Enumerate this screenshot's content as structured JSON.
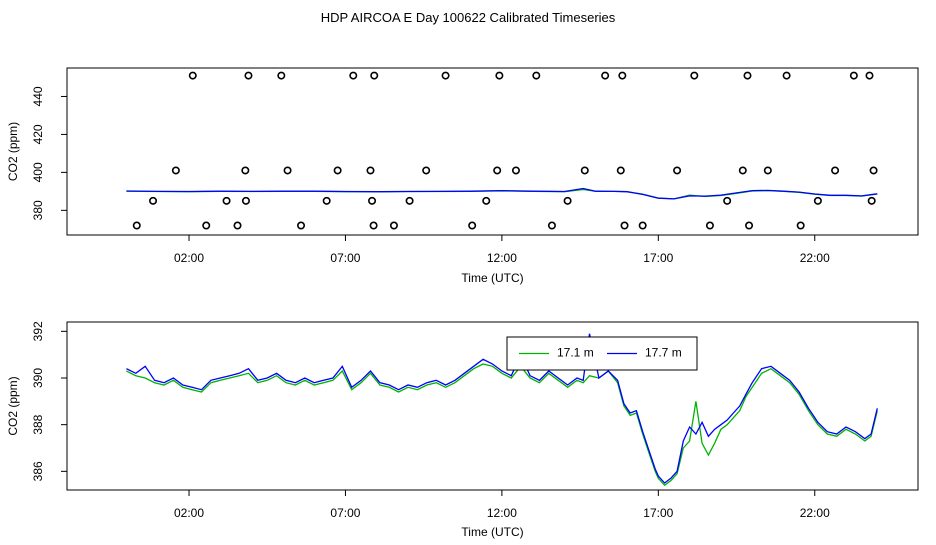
{
  "page_title": "HDP AIRCOA E  Day 100622  Calibrated Timeseries",
  "chart_data": [
    {
      "type": "scatter",
      "panel": "top",
      "xlabel": "Time (UTC)",
      "ylabel": "CO2 (ppm)",
      "xlim": [
        -1.9,
        25.3
      ],
      "ylim": [
        367,
        455
      ],
      "x_ticks": [
        "02:00",
        "07:00",
        "12:00",
        "17:00",
        "22:00"
      ],
      "x_tick_values": [
        2,
        7,
        12,
        17,
        22
      ],
      "y_ticks": [
        "380",
        "400",
        "420",
        "440"
      ],
      "y_tick_values": [
        380,
        400,
        420,
        440
      ],
      "grid": false,
      "series": [
        {
          "kind": "points",
          "color": "#000000",
          "x": [
            0.33,
            0.85,
            1.58,
            2.12,
            2.55,
            3.2,
            3.55,
            3.8,
            3.82,
            3.9,
            4.95,
            5.15,
            5.58,
            6.4,
            6.75,
            7.25,
            7.8,
            7.85,
            7.9,
            7.92,
            8.55,
            9.05,
            9.58,
            10.2,
            11.05,
            11.5,
            11.85,
            11.92,
            12.45,
            13.1,
            13.6,
            14.1,
            14.65,
            15.3,
            15.8,
            15.85,
            15.92,
            16.5,
            17.6,
            18.15,
            18.65,
            19.2,
            19.7,
            19.85,
            19.9,
            20.5,
            21.1,
            21.55,
            22.1,
            22.65,
            23.25,
            23.75,
            23.82,
            23.88
          ],
          "y": [
            372,
            385,
            401,
            451,
            372,
            385,
            372,
            401,
            385,
            451,
            451,
            401,
            372,
            385,
            401,
            451,
            401,
            385,
            372,
            451,
            372,
            385,
            401,
            451,
            372,
            385,
            401,
            451,
            401,
            451,
            372,
            385,
            401,
            451,
            401,
            451,
            372,
            372,
            401,
            451,
            372,
            385,
            401,
            451,
            372,
            401,
            451,
            372,
            385,
            401,
            451,
            451,
            385,
            401
          ]
        },
        {
          "kind": "line",
          "name": "17.1 m",
          "color": "#00b400",
          "x": [
            0.0,
            1.0,
            2.0,
            3.0,
            4.0,
            5.0,
            6.0,
            7.0,
            8.0,
            9.0,
            10.0,
            11.0,
            12.0,
            13.0,
            14.0,
            14.6,
            15.0,
            15.6,
            16.0,
            16.5,
            17.0,
            17.5,
            18.0,
            18.5,
            19.0,
            19.5,
            20.0,
            20.5,
            21.0,
            21.5,
            22.0,
            22.5,
            23.0,
            23.5,
            24.0
          ],
          "y": [
            390.1,
            389.9,
            389.8,
            390.0,
            389.9,
            390.0,
            390.0,
            389.8,
            389.8,
            389.9,
            389.9,
            390.0,
            390.3,
            390.0,
            389.8,
            391.0,
            390.0,
            390.0,
            389.8,
            388.5,
            386.5,
            386.0,
            388.0,
            387.3,
            387.8,
            389.0,
            390.2,
            390.4,
            390.0,
            389.5,
            388.5,
            387.8,
            387.8,
            387.5,
            388.6
          ]
        },
        {
          "kind": "line",
          "name": "17.7 m",
          "color": "#0000ff",
          "x": [
            0.0,
            1.0,
            2.0,
            3.0,
            4.0,
            5.0,
            6.0,
            7.0,
            8.0,
            9.0,
            10.0,
            11.0,
            12.0,
            13.0,
            14.0,
            14.6,
            15.0,
            15.6,
            16.0,
            16.5,
            17.0,
            17.5,
            18.0,
            18.5,
            19.0,
            19.5,
            20.0,
            20.5,
            21.0,
            21.5,
            22.0,
            22.5,
            23.0,
            23.5,
            24.0
          ],
          "y": [
            390.2,
            390.0,
            389.9,
            390.1,
            390.0,
            390.1,
            390.1,
            389.9,
            389.8,
            389.9,
            390.0,
            390.1,
            390.4,
            390.1,
            389.9,
            391.5,
            390.1,
            390.0,
            389.8,
            388.4,
            386.4,
            386.0,
            387.6,
            387.5,
            388.0,
            389.2,
            390.4,
            390.5,
            390.1,
            389.6,
            388.6,
            387.9,
            387.9,
            387.6,
            388.7
          ]
        }
      ]
    },
    {
      "type": "line",
      "panel": "bottom",
      "xlabel": "Time (UTC)",
      "ylabel": "CO2 (ppm)",
      "xlim": [
        -1.9,
        25.3
      ],
      "ylim": [
        385.2,
        392.4
      ],
      "x_ticks": [
        "02:00",
        "07:00",
        "12:00",
        "17:00",
        "22:00"
      ],
      "x_tick_values": [
        2,
        7,
        12,
        17,
        22
      ],
      "y_ticks": [
        "386",
        "388",
        "390",
        "392"
      ],
      "y_tick_values": [
        386,
        388,
        390,
        392
      ],
      "grid": false,
      "legend": "top-center",
      "series": [
        {
          "name": "17.1 m",
          "color": "#00b400",
          "x": [
            0.0,
            0.3,
            0.6,
            0.9,
            1.2,
            1.5,
            1.8,
            2.1,
            2.4,
            2.7,
            3.0,
            3.3,
            3.6,
            3.9,
            4.2,
            4.5,
            4.8,
            5.1,
            5.4,
            5.7,
            6.0,
            6.3,
            6.6,
            6.9,
            7.2,
            7.5,
            7.8,
            8.1,
            8.4,
            8.7,
            9.0,
            9.3,
            9.6,
            9.9,
            10.2,
            10.5,
            10.8,
            11.1,
            11.4,
            11.7,
            12.0,
            12.3,
            12.6,
            12.9,
            13.2,
            13.5,
            13.8,
            14.1,
            14.4,
            14.6,
            14.8,
            15.1,
            15.4,
            15.7,
            15.9,
            16.1,
            16.3,
            16.5,
            16.7,
            16.9,
            17.0,
            17.2,
            17.4,
            17.6,
            17.8,
            18.0,
            18.2,
            18.4,
            18.6,
            18.8,
            19.0,
            19.2,
            19.4,
            19.6,
            19.8,
            20.0,
            20.3,
            20.6,
            20.9,
            21.2,
            21.5,
            21.8,
            22.1,
            22.4,
            22.7,
            23.0,
            23.3,
            23.6,
            23.8,
            24.0
          ],
          "y": [
            390.3,
            390.1,
            390.0,
            389.8,
            389.7,
            389.9,
            389.6,
            389.5,
            389.4,
            389.8,
            389.9,
            390.0,
            390.1,
            390.2,
            389.8,
            389.9,
            390.1,
            389.8,
            389.7,
            389.9,
            389.7,
            389.8,
            389.9,
            390.3,
            389.5,
            389.8,
            390.2,
            389.7,
            389.6,
            389.4,
            389.6,
            389.5,
            389.7,
            389.8,
            389.6,
            389.8,
            390.1,
            390.4,
            390.6,
            390.5,
            390.2,
            390.0,
            390.5,
            390.0,
            389.8,
            390.2,
            389.9,
            389.6,
            389.9,
            389.8,
            390.1,
            390.0,
            390.3,
            389.8,
            388.8,
            388.4,
            388.5,
            387.6,
            386.8,
            386.0,
            385.7,
            385.4,
            385.6,
            385.9,
            387.0,
            387.3,
            389.0,
            387.2,
            386.7,
            387.2,
            387.8,
            388.0,
            388.3,
            388.6,
            389.2,
            389.6,
            390.2,
            390.4,
            390.1,
            389.8,
            389.3,
            388.6,
            388.0,
            387.6,
            387.5,
            387.8,
            387.6,
            387.3,
            387.5,
            388.6
          ]
        },
        {
          "name": "17.7 m",
          "color": "#0000ff",
          "x": [
            0.0,
            0.3,
            0.6,
            0.9,
            1.2,
            1.5,
            1.8,
            2.1,
            2.4,
            2.7,
            3.0,
            3.3,
            3.6,
            3.9,
            4.2,
            4.5,
            4.8,
            5.1,
            5.4,
            5.7,
            6.0,
            6.3,
            6.6,
            6.9,
            7.2,
            7.5,
            7.8,
            8.1,
            8.4,
            8.7,
            9.0,
            9.3,
            9.6,
            9.9,
            10.2,
            10.5,
            10.8,
            11.1,
            11.4,
            11.7,
            12.0,
            12.3,
            12.6,
            12.9,
            13.2,
            13.5,
            13.8,
            14.1,
            14.4,
            14.6,
            14.8,
            15.1,
            15.4,
            15.7,
            15.9,
            16.1,
            16.3,
            16.5,
            16.7,
            16.9,
            17.0,
            17.2,
            17.4,
            17.6,
            17.8,
            18.0,
            18.2,
            18.4,
            18.6,
            18.8,
            19.0,
            19.2,
            19.4,
            19.6,
            19.8,
            20.0,
            20.3,
            20.6,
            20.9,
            21.2,
            21.5,
            21.8,
            22.1,
            22.4,
            22.7,
            23.0,
            23.3,
            23.6,
            23.8,
            24.0
          ],
          "y": [
            390.4,
            390.2,
            390.5,
            389.9,
            389.8,
            390.0,
            389.7,
            389.6,
            389.5,
            389.9,
            390.0,
            390.1,
            390.2,
            390.4,
            389.9,
            390.0,
            390.2,
            389.9,
            389.8,
            390.0,
            389.8,
            389.9,
            390.0,
            390.5,
            389.6,
            389.9,
            390.3,
            389.8,
            389.7,
            389.5,
            389.7,
            389.6,
            389.8,
            389.9,
            389.7,
            389.9,
            390.2,
            390.5,
            390.8,
            390.6,
            390.3,
            390.1,
            391.0,
            390.1,
            389.9,
            390.3,
            390.0,
            389.7,
            390.0,
            389.9,
            391.9,
            390.0,
            390.3,
            389.9,
            388.9,
            388.5,
            388.6,
            387.7,
            386.9,
            386.1,
            385.8,
            385.5,
            385.7,
            386.0,
            387.3,
            387.9,
            387.6,
            388.1,
            387.5,
            387.8,
            388.0,
            388.2,
            388.5,
            388.8,
            389.3,
            389.8,
            390.4,
            390.5,
            390.2,
            389.9,
            389.4,
            388.7,
            388.1,
            387.7,
            387.6,
            387.9,
            387.7,
            387.4,
            387.6,
            388.7
          ]
        }
      ]
    }
  ]
}
